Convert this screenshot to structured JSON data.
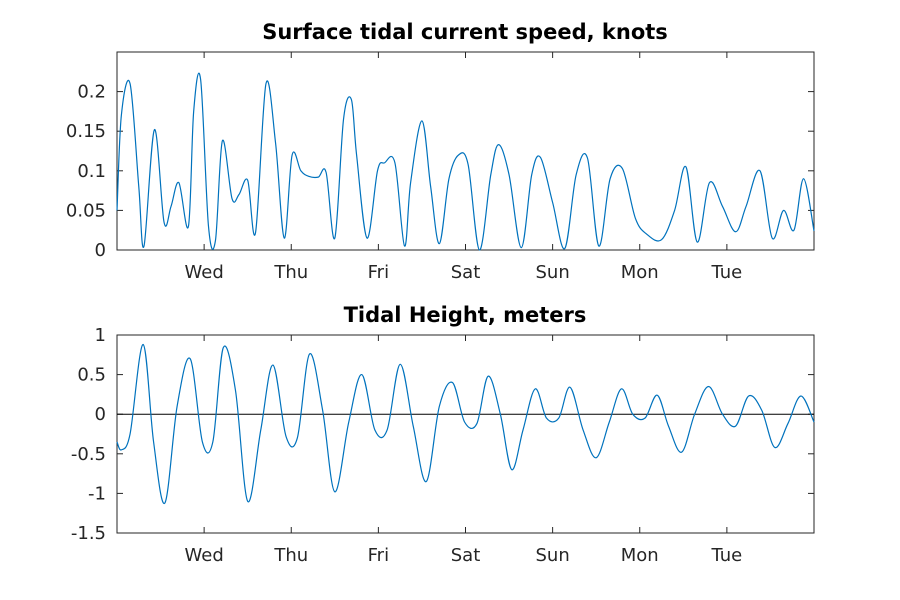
{
  "colors": {
    "series": "#0072BD",
    "axes": "#262626",
    "zero_line": "#000000"
  },
  "chart_data": [
    {
      "type": "line",
      "title": "Surface tidal current speed, knots",
      "xlabel": "",
      "ylabel": "",
      "x_tick_labels": [
        "Wed",
        "Thu",
        "Fri",
        "Sat",
        "Sun",
        "Mon",
        "Tue"
      ],
      "x_tick_days": [
        1,
        2,
        3,
        4,
        5,
        6,
        7
      ],
      "xlim_days": [
        0,
        8
      ],
      "ylim": [
        0,
        0.25
      ],
      "y_ticks": [
        0,
        0.05,
        0.1,
        0.15,
        0.2
      ],
      "y_tick_labels": [
        "0",
        "0.05",
        "0.1",
        "0.15",
        "0.2"
      ],
      "zero_line": false,
      "grid": false,
      "series": [
        {
          "x_days": [
            0,
            0.05,
            0.15,
            0.25,
            0.31,
            0.43,
            0.54,
            0.62,
            0.71,
            0.82,
            0.88,
            0.96,
            1.05,
            1.13,
            1.21,
            1.32,
            1.4,
            1.5,
            1.59,
            1.71,
            1.82,
            1.92,
            2.01,
            2.11,
            2.2,
            2.31,
            2.4,
            2.5,
            2.6,
            2.69,
            2.75,
            2.87,
            2.99,
            3.07,
            3.19,
            3.3,
            3.37,
            3.5,
            3.6,
            3.7,
            3.81,
            3.92,
            4.03,
            4.16,
            4.29,
            4.38,
            4.5,
            4.64,
            4.76,
            4.86,
            5.0,
            5.14,
            5.27,
            5.4,
            5.53,
            5.66,
            5.8,
            5.95,
            6.08,
            6.25,
            6.4,
            6.53,
            6.66,
            6.8,
            6.95,
            7.1,
            7.22,
            7.38,
            7.52,
            7.65,
            7.77,
            7.88,
            8.0
          ],
          "values": [
            0.05,
            0.17,
            0.21,
            0.08,
            0.005,
            0.152,
            0.035,
            0.055,
            0.085,
            0.03,
            0.175,
            0.215,
            0.03,
            0.012,
            0.138,
            0.065,
            0.07,
            0.088,
            0.022,
            0.21,
            0.135,
            0.015,
            0.12,
            0.1,
            0.093,
            0.092,
            0.098,
            0.015,
            0.165,
            0.19,
            0.12,
            0.015,
            0.1,
            0.11,
            0.11,
            0.005,
            0.085,
            0.163,
            0.08,
            0.008,
            0.09,
            0.12,
            0.108,
            0.0,
            0.095,
            0.133,
            0.095,
            0.003,
            0.095,
            0.117,
            0.06,
            0.002,
            0.095,
            0.116,
            0.005,
            0.09,
            0.103,
            0.04,
            0.02,
            0.013,
            0.05,
            0.105,
            0.01,
            0.085,
            0.055,
            0.023,
            0.055,
            0.1,
            0.015,
            0.05,
            0.025,
            0.09,
            0.024
          ]
        }
      ]
    },
    {
      "type": "line",
      "title": "Tidal Height, meters",
      "xlabel": "",
      "ylabel": "",
      "x_tick_labels": [
        "Wed",
        "Thu",
        "Fri",
        "Sat",
        "Sun",
        "Mon",
        "Tue"
      ],
      "x_tick_days": [
        1,
        2,
        3,
        4,
        5,
        6,
        7
      ],
      "xlim_days": [
        0,
        8
      ],
      "ylim": [
        -1.5,
        1
      ],
      "y_ticks": [
        -1.5,
        -1,
        -0.5,
        0,
        0.5,
        1
      ],
      "y_tick_labels": [
        "-1.5",
        "-1",
        "-0.5",
        "0",
        "0.5",
        "1"
      ],
      "zero_line": true,
      "grid": false,
      "series": [
        {
          "x_days": [
            0,
            0.05,
            0.15,
            0.3,
            0.42,
            0.55,
            0.69,
            0.84,
            0.98,
            1.1,
            1.22,
            1.36,
            1.5,
            1.65,
            1.79,
            1.94,
            2.07,
            2.21,
            2.36,
            2.5,
            2.66,
            2.81,
            2.96,
            3.1,
            3.25,
            3.4,
            3.55,
            3.7,
            3.85,
            3.99,
            4.13,
            4.26,
            4.4,
            4.53,
            4.66,
            4.8,
            4.93,
            5.07,
            5.2,
            5.35,
            5.5,
            5.65,
            5.79,
            5.92,
            6.06,
            6.2,
            6.33,
            6.48,
            6.63,
            6.79,
            6.95,
            7.1,
            7.25,
            7.4,
            7.55,
            7.7,
            7.85,
            8.0
          ],
          "values": [
            -0.35,
            -0.45,
            -0.25,
            0.88,
            -0.35,
            -1.12,
            0.1,
            0.7,
            -0.35,
            -0.35,
            0.84,
            0.3,
            -1.1,
            -0.2,
            0.62,
            -0.28,
            -0.3,
            0.76,
            0.05,
            -0.98,
            -0.1,
            0.5,
            -0.2,
            -0.2,
            0.63,
            -0.15,
            -0.85,
            0.1,
            0.4,
            -0.1,
            -0.12,
            0.48,
            0.0,
            -0.7,
            -0.2,
            0.32,
            -0.05,
            -0.05,
            0.34,
            -0.2,
            -0.55,
            -0.1,
            0.32,
            0.0,
            -0.05,
            0.24,
            -0.15,
            -0.48,
            0.0,
            0.35,
            0.0,
            -0.15,
            0.23,
            0.05,
            -0.42,
            -0.12,
            0.23,
            -0.1
          ]
        }
      ]
    }
  ]
}
